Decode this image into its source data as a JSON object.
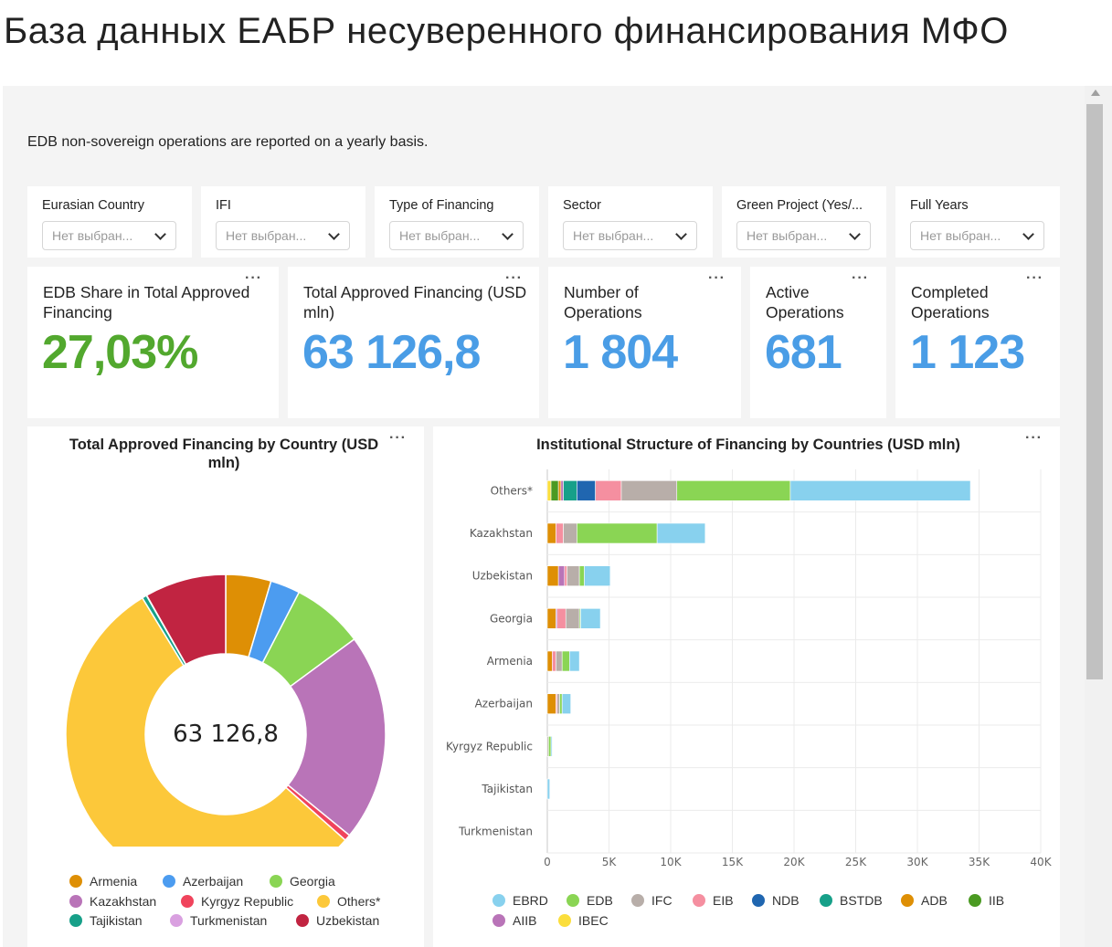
{
  "title": "База данных ЕАБР несуверенного финансирования МФО",
  "subtitle": "EDB non-sovereign operations are reported on a yearly basis.",
  "filters": [
    {
      "label": "Eurasian Country",
      "placeholder": "Нет выбран..."
    },
    {
      "label": "IFI",
      "placeholder": "Нет выбран..."
    },
    {
      "label": "Type of Financing",
      "placeholder": "Нет выбран..."
    },
    {
      "label": "Sector",
      "placeholder": "Нет выбран..."
    },
    {
      "label": "Green Project (Yes/...",
      "placeholder": "Нет выбран..."
    },
    {
      "label": "Full Years",
      "placeholder": "Нет выбран..."
    }
  ],
  "kpis": [
    {
      "label": "EDB Share in Total Approved Financing",
      "value": "27,03%",
      "color": "#52a82e"
    },
    {
      "label": "Total Approved Financing (USD mln)",
      "value": "63 126,8",
      "color": "#4a9de6"
    },
    {
      "label": "Number of Operations",
      "value": "1 804",
      "color": "#4a9de6"
    },
    {
      "label": "Active Operations",
      "value": "681",
      "color": "#4a9de6"
    },
    {
      "label": "Completed Operations",
      "value": "1 123",
      "color": "#4a9de6"
    }
  ],
  "menu_glyph": "···",
  "donut": {
    "title": "Total Approved Financing by Country (USD mln)",
    "center_label": "63 126,8",
    "legend": [
      {
        "name": "Armenia",
        "color": "#de8f05"
      },
      {
        "name": "Azerbaijan",
        "color": "#4c9cf0"
      },
      {
        "name": "Georgia",
        "color": "#8ad554"
      },
      {
        "name": "Kazakhstan",
        "color": "#b974b8"
      },
      {
        "name": "Kyrgyz Republic",
        "color": "#f0445c"
      },
      {
        "name": "Others*",
        "color": "#fcc83a"
      },
      {
        "name": "Tajikistan",
        "color": "#17a089"
      },
      {
        "name": "Turkmenistan",
        "color": "#d9a0e0"
      },
      {
        "name": "Uzbekistan",
        "color": "#c12441"
      }
    ]
  },
  "bars": {
    "title": "Institutional Structure of Financing by Countries (USD mln)",
    "legend": [
      {
        "name": "EBRD",
        "color": "#88d1ee"
      },
      {
        "name": "EDB",
        "color": "#8ad554"
      },
      {
        "name": "IFC",
        "color": "#b8aea9"
      },
      {
        "name": "EIB",
        "color": "#f58fa0"
      },
      {
        "name": "NDB",
        "color": "#2066b0"
      },
      {
        "name": "BSTDB",
        "color": "#17a089"
      },
      {
        "name": "ADB",
        "color": "#de8f05"
      },
      {
        "name": "IIB",
        "color": "#4b9a22"
      },
      {
        "name": "AIIB",
        "color": "#b974b8"
      },
      {
        "name": "IBEC",
        "color": "#fbde3c"
      }
    ]
  },
  "chart_data": [
    {
      "type": "pie",
      "title": "Total Approved Financing by Country (USD mln)",
      "total_label": "63 126,8",
      "categories": [
        "Armenia",
        "Azerbaijan",
        "Georgia",
        "Kazakhstan",
        "Kyrgyz Republic",
        "Others*",
        "Tajikistan",
        "Turkmenistan",
        "Uzbekistan"
      ],
      "values": [
        2900,
        1900,
        4600,
        13300,
        400,
        34600,
        300,
        20,
        5200
      ],
      "colors": [
        "#de8f05",
        "#4c9cf0",
        "#8ad554",
        "#b974b8",
        "#f0445c",
        "#fcc83a",
        "#17a089",
        "#d9a0e0",
        "#c12441"
      ]
    },
    {
      "type": "bar",
      "orientation": "horizontal",
      "stacked": true,
      "title": "Institutional Structure of Financing by Countries (USD mln)",
      "categories": [
        "Others*",
        "Kazakhstan",
        "Uzbekistan",
        "Georgia",
        "Armenia",
        "Azerbaijan",
        "Kyrgyz Republic",
        "Tajikistan",
        "Turkmenistan"
      ],
      "xlim": [
        0,
        40000
      ],
      "xticks": [
        0,
        5000,
        10000,
        15000,
        20000,
        25000,
        30000,
        35000,
        40000
      ],
      "xtick_labels": [
        "0",
        "5K",
        "10K",
        "15K",
        "20K",
        "25K",
        "30K",
        "35K",
        "40K"
      ],
      "grid": true,
      "legend_position": "bottom",
      "series": [
        {
          "name": "IBEC",
          "color": "#fbde3c",
          "values": [
            300,
            0,
            0,
            0,
            0,
            0,
            0,
            0,
            0
          ]
        },
        {
          "name": "IIB",
          "color": "#4b9a22",
          "values": [
            600,
            0,
            0,
            0,
            0,
            0,
            0,
            0,
            0
          ]
        },
        {
          "name": "ADB",
          "color": "#de8f05",
          "values": [
            200,
            700,
            900,
            700,
            400,
            700,
            0,
            0,
            0
          ]
        },
        {
          "name": "AIIB",
          "color": "#b974b8",
          "values": [
            200,
            0,
            500,
            100,
            0,
            0,
            0,
            0,
            0
          ]
        },
        {
          "name": "BSTDB",
          "color": "#17a089",
          "values": [
            1100,
            0,
            0,
            0,
            0,
            0,
            0,
            0,
            0
          ]
        },
        {
          "name": "NDB",
          "color": "#2066b0",
          "values": [
            1500,
            0,
            0,
            0,
            0,
            0,
            0,
            0,
            0
          ]
        },
        {
          "name": "EIB",
          "color": "#f58fa0",
          "values": [
            2100,
            600,
            200,
            700,
            300,
            100,
            0,
            0,
            0
          ]
        },
        {
          "name": "IFC",
          "color": "#b8aea9",
          "values": [
            4500,
            1100,
            1000,
            1100,
            500,
            200,
            100,
            0,
            0
          ]
        },
        {
          "name": "EDB",
          "color": "#8ad554",
          "values": [
            9200,
            6500,
            400,
            100,
            600,
            200,
            200,
            0,
            0
          ]
        },
        {
          "name": "EBRD",
          "color": "#88d1ee",
          "values": [
            14600,
            3900,
            2100,
            1600,
            800,
            700,
            100,
            200,
            0
          ]
        }
      ]
    }
  ]
}
